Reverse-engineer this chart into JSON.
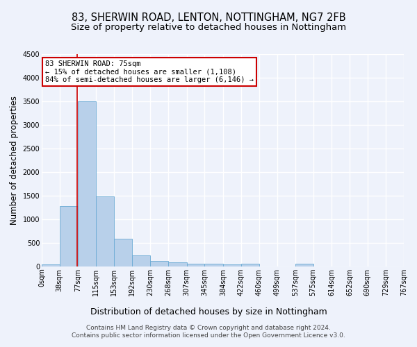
{
  "title1": "83, SHERWIN ROAD, LENTON, NOTTINGHAM, NG7 2FB",
  "title2": "Size of property relative to detached houses in Nottingham",
  "xlabel": "Distribution of detached houses by size in Nottingham",
  "ylabel": "Number of detached properties",
  "bin_labels": [
    "0sqm",
    "38sqm",
    "77sqm",
    "115sqm",
    "153sqm",
    "192sqm",
    "230sqm",
    "268sqm",
    "307sqm",
    "345sqm",
    "384sqm",
    "422sqm",
    "460sqm",
    "499sqm",
    "537sqm",
    "575sqm",
    "614sqm",
    "652sqm",
    "690sqm",
    "729sqm",
    "767sqm"
  ],
  "bin_edges": [
    0,
    38,
    77,
    115,
    153,
    192,
    230,
    268,
    307,
    345,
    384,
    422,
    460,
    499,
    537,
    575,
    614,
    652,
    690,
    729,
    767
  ],
  "bar_values": [
    40,
    1280,
    3500,
    1480,
    580,
    240,
    120,
    85,
    60,
    50,
    40,
    60,
    0,
    0,
    60,
    0,
    0,
    0,
    0,
    0
  ],
  "bar_color": "#b8d0ea",
  "bar_edge_color": "#6aaad4",
  "vline_x": 75,
  "vline_color": "#cc0000",
  "annotation_text": "83 SHERWIN ROAD: 75sqm\n← 15% of detached houses are smaller (1,108)\n84% of semi-detached houses are larger (6,146) →",
  "annotation_box_color": "#ffffff",
  "annotation_box_edge_color": "#cc0000",
  "ylim": [
    0,
    4500
  ],
  "yticks": [
    0,
    500,
    1000,
    1500,
    2000,
    2500,
    3000,
    3500,
    4000,
    4500
  ],
  "footer1": "Contains HM Land Registry data © Crown copyright and database right 2024.",
  "footer2": "Contains public sector information licensed under the Open Government Licence v3.0.",
  "bg_color": "#eef2fb",
  "plot_bg_color": "#eef2fb",
  "grid_color": "#ffffff",
  "title1_fontsize": 10.5,
  "title2_fontsize": 9.5,
  "tick_fontsize": 7,
  "ylabel_fontsize": 8.5,
  "xlabel_fontsize": 9,
  "footer_fontsize": 6.5
}
